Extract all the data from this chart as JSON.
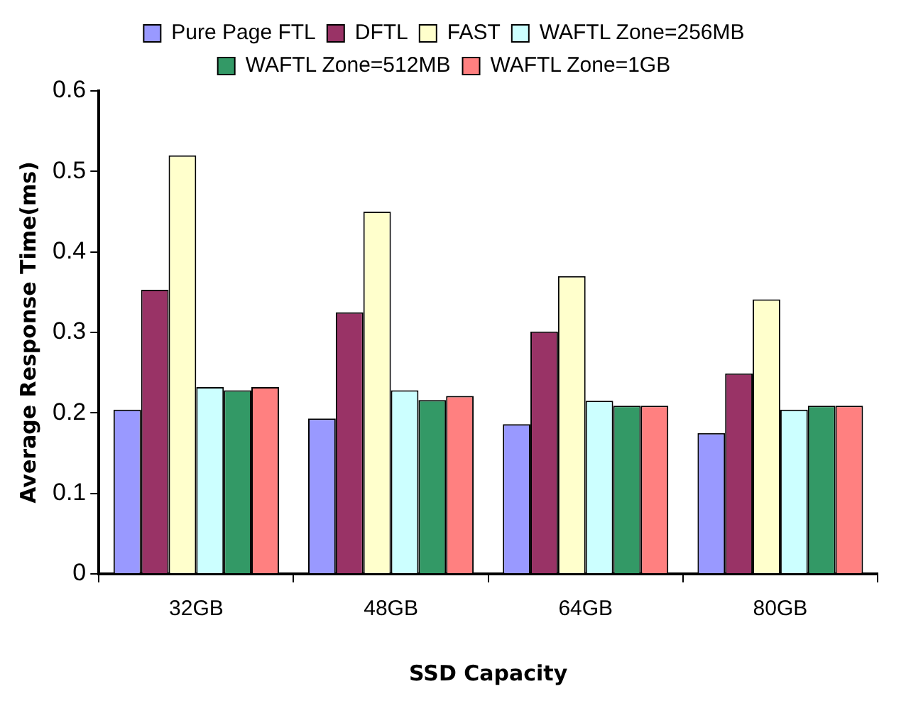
{
  "chart_data": {
    "type": "bar",
    "xlabel": "SSD Capacity",
    "ylabel": "Average Response Time(ms)",
    "categories": [
      "32GB",
      "48GB",
      "64GB",
      "80GB"
    ],
    "series": [
      {
        "name": "Pure Page FTL",
        "color": "#9999ff",
        "values": [
          0.204,
          0.193,
          0.186,
          0.175
        ]
      },
      {
        "name": "DFTL",
        "color": "#993366",
        "values": [
          0.353,
          0.325,
          0.301,
          0.249
        ]
      },
      {
        "name": "FAST",
        "color": "#ffffcc",
        "values": [
          0.52,
          0.45,
          0.37,
          0.341
        ]
      },
      {
        "name": "WAFTL Zone=256MB",
        "color": "#ccffff",
        "values": [
          0.232,
          0.228,
          0.215,
          0.204
        ]
      },
      {
        "name": "WAFTL Zone=512MB",
        "color": "#339966",
        "values": [
          0.228,
          0.216,
          0.209,
          0.209
        ]
      },
      {
        "name": "WAFTL Zone=1GB",
        "color": "#ff8080",
        "values": [
          0.232,
          0.221,
          0.209,
          0.209
        ]
      }
    ],
    "ylim": [
      0,
      0.6
    ],
    "yticks": [
      0,
      0.1,
      0.2,
      0.3,
      0.4,
      0.5,
      0.6
    ],
    "grid": false,
    "legend": "top"
  }
}
